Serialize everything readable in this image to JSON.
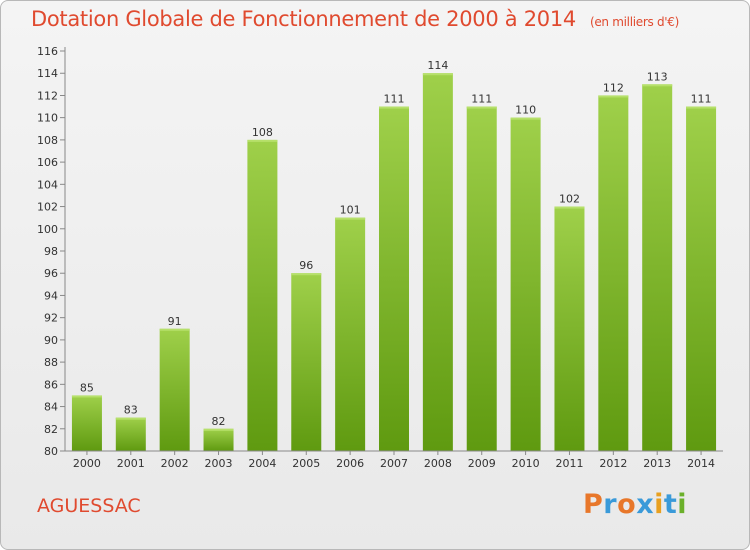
{
  "header": {
    "title": "Dotation Globale de Fonctionnement de 2000 à 2014",
    "subtitle": "(en milliers d'€)"
  },
  "footer": {
    "commune": "AGUESSAC",
    "logo_text": "Proxiti"
  },
  "colors": {
    "title": "#e04a2f",
    "bar_light": "#9fd04a",
    "bar_dark": "#5f9a10",
    "logo_letters": [
      "#e8772a",
      "#3a9ad9",
      "#e8772a",
      "#3a9ad9",
      "#e8a020",
      "#3a9ad9",
      "#6bb02a"
    ]
  },
  "chart_data": {
    "type": "bar",
    "title": "Dotation Globale de Fonctionnement de 2000 à 2014",
    "subtitle": "(en milliers d'€)",
    "categories": [
      "2000",
      "2001",
      "2002",
      "2003",
      "2004",
      "2005",
      "2006",
      "2007",
      "2008",
      "2009",
      "2010",
      "2011",
      "2012",
      "2013",
      "2014"
    ],
    "values": [
      85,
      83,
      91,
      82,
      108,
      96,
      101,
      111,
      114,
      111,
      110,
      102,
      112,
      113,
      111
    ],
    "ylim": [
      80,
      116
    ],
    "yticks": [
      80,
      82,
      84,
      86,
      88,
      90,
      92,
      94,
      96,
      98,
      100,
      102,
      104,
      106,
      108,
      110,
      112,
      114,
      116
    ],
    "grid": false,
    "xlabel": "",
    "ylabel": ""
  }
}
